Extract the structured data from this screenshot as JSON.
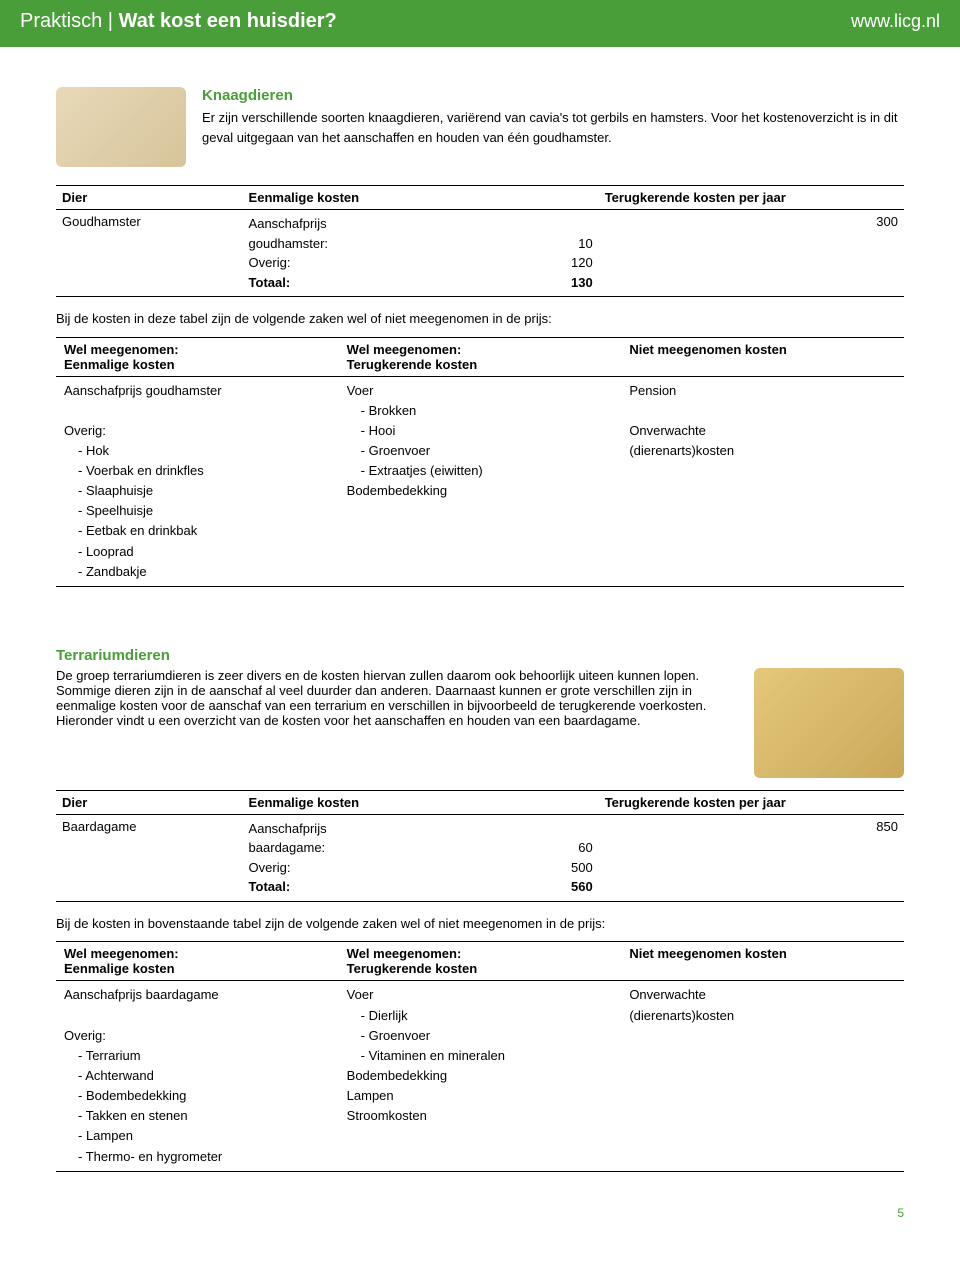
{
  "header": {
    "breadcrumb": "Praktisch | ",
    "title": "Wat kost een huisdier?",
    "site": "www.licg.nl"
  },
  "section1": {
    "title": "Knaagdieren",
    "intro": "Er zijn verschillende soorten knaagdieren, variërend van cavia's tot gerbils en hamsters. Voor het kostenoverzicht is in dit geval uitgegaan van het aanschaffen en houden van één goudhamster.",
    "cost": {
      "col_dier": "Dier",
      "col_een": "Eenmalige kosten",
      "col_ter": "Terugkerende kosten per jaar",
      "animal": "Goudhamster",
      "rows": [
        {
          "label": "Aanschafprijs",
          "value": ""
        },
        {
          "label": "goudhamster:",
          "value": "10"
        },
        {
          "label": "Overig:",
          "value": "120"
        },
        {
          "label_bold": "Totaal:",
          "value_bold": "130"
        }
      ],
      "recurring": "300"
    },
    "note": "Bij de kosten in deze tabel zijn de volgende zaken wel of niet meegenomen in de prijs:",
    "inc": {
      "h1a": "Wel meegenomen:",
      "h1b": "Eenmalige kosten",
      "h2a": "Wel meegenomen:",
      "h2b": "Terugkerende kosten",
      "h3": "Niet meegenomen kosten",
      "c1": [
        "Aanschafprijs goudhamster",
        "",
        "Overig:",
        "  - Hok",
        "  - Voerbak en drinkfles",
        "  - Slaaphuisje",
        "  - Speelhuisje",
        "  - Eetbak en drinkbak",
        "  - Looprad",
        "  - Zandbakje"
      ],
      "c2": [
        "Voer",
        "  - Brokken",
        "  - Hooi",
        "  - Groenvoer",
        "  - Extraatjes (eiwitten)",
        "Bodembedekking"
      ],
      "c3": [
        "Pension",
        "",
        "Onverwachte",
        "(dierenarts)kosten"
      ]
    }
  },
  "section2": {
    "title": "Terrariumdieren",
    "intro": "De groep terrariumdieren is zeer divers en de kosten hiervan zullen daarom ook behoorlijk uiteen kunnen lopen. Sommige dieren zijn in de aanschaf al veel duurder dan anderen. Daarnaast kunnen er grote verschillen zijn in eenmalige kosten voor de aanschaf van een terrarium en verschillen in bijvoorbeeld de terugkerende voerkosten. Hieronder vindt u een overzicht van de kosten voor het aanschaffen en houden van een baardagame.",
    "cost": {
      "col_dier": "Dier",
      "col_een": "Eenmalige kosten",
      "col_ter": "Terugkerende kosten per jaar",
      "animal": "Baardagame",
      "rows": [
        {
          "label": "Aanschafprijs",
          "value": ""
        },
        {
          "label": "baardagame:",
          "value": "60"
        },
        {
          "label": "Overig:",
          "value": "500"
        },
        {
          "label_bold": "Totaal:",
          "value_bold": "560"
        }
      ],
      "recurring": "850"
    },
    "note": "Bij de kosten in bovenstaande tabel zijn de volgende zaken wel of niet meegenomen in de prijs:",
    "inc": {
      "h1a": "Wel meegenomen:",
      "h1b": "Eenmalige kosten",
      "h2a": "Wel meegenomen:",
      "h2b": "Terugkerende kosten",
      "h3": "Niet meegenomen kosten",
      "c1": [
        "Aanschafprijs baardagame",
        "",
        "Overig:",
        "  - Terrarium",
        "  - Achterwand",
        "  - Bodembedekking",
        "  - Takken en stenen",
        "  - Lampen",
        "  - Thermo- en hygrometer"
      ],
      "c2": [
        "Voer",
        "  - Dierlijk",
        "  - Groenvoer",
        "  - Vitaminen en mineralen",
        "Bodembedekking",
        "Lampen",
        "Stroomkosten"
      ],
      "c3": [
        "Onverwachte",
        "(dierenarts)kosten"
      ]
    }
  },
  "page_number": "5",
  "colors": {
    "brand_green": "#4a9e3a",
    "text": "#000000",
    "background": "#ffffff"
  },
  "typography": {
    "body_fontsize_pt": 10,
    "title_fontsize_pt": 15,
    "section_title_fontsize_pt": 11,
    "font_family": "Verdana"
  }
}
